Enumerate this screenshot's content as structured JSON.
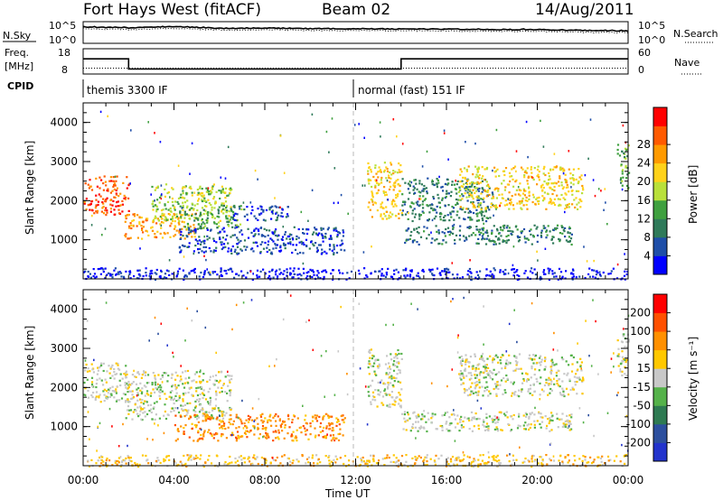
{
  "header": {
    "station": "Fort Hays West (fitACF)",
    "beam": "Beam 02",
    "date": "14/Aug/2011"
  },
  "panels": {
    "nsky_label": "N.Sky",
    "nsearch_label": "N.Search",
    "freq_label_line1": "Freq.",
    "freq_label_line2": "[MHz]",
    "nave_label": "Nave",
    "cpid_label": "CPID",
    "nsky_ticks": [
      "10^5",
      "10^0"
    ],
    "nsky_right_ticks": [
      "10^5",
      "10^0"
    ],
    "freq_ticks": [
      "18",
      "8"
    ],
    "nave_ticks": [
      "60",
      "0"
    ],
    "cpid_segments": [
      {
        "start_hour": 0,
        "end_hour": 12,
        "label": "themis 3300 IF"
      },
      {
        "start_hour": 12,
        "end_hour": 24,
        "label": "normal (fast) 151 IF"
      }
    ]
  },
  "colors": {
    "power": [
      "#0000ff",
      "#1e4ea8",
      "#2f7a5a",
      "#3fa03f",
      "#b9e03a",
      "#ffd21a",
      "#ff9a00",
      "#ff5a00",
      "#ff0000"
    ],
    "velocity": [
      "#2233cc",
      "#2c4f9e",
      "#2e7a52",
      "#55b24a",
      "#c8c8c8",
      "#ffc800",
      "#ff9000",
      "#ff5000",
      "#ff0000"
    ]
  },
  "chart_data": [
    {
      "type": "line",
      "name": "top-status",
      "x_hours": [
        0,
        2,
        4,
        6,
        8,
        10,
        12,
        14,
        16,
        18,
        20,
        22,
        24
      ],
      "nsky": [
        3.8,
        3.6,
        3.9,
        3.5,
        3.5,
        3.4,
        3.4,
        3.3,
        3.3,
        3.2,
        3.2,
        3.0,
        2.9
      ],
      "freq_mhz": [
        14,
        14,
        10,
        10,
        10,
        10,
        10,
        14,
        14,
        14,
        14,
        14,
        14
      ],
      "nave": [
        14,
        14,
        14,
        14,
        14,
        14,
        14,
        14,
        14,
        14,
        14,
        14,
        14
      ],
      "freq_steps": [
        {
          "start_hour": 0,
          "end_hour": 2,
          "value": 14
        },
        {
          "start_hour": 2,
          "end_hour": 14,
          "value": 10
        },
        {
          "start_hour": 14,
          "end_hour": 24,
          "value": 14
        }
      ]
    },
    {
      "type": "heatmap",
      "name": "power",
      "xlabel": "",
      "ylabel": "Slant Range [km]",
      "xlim": [
        0,
        24
      ],
      "ylim": [
        0,
        4500
      ],
      "yticks": [
        1000,
        2000,
        3000,
        4000
      ],
      "colorbar_label": "Power [dB]",
      "colorbar_ticks": [
        "4",
        "8",
        "12",
        "16",
        "20",
        "24",
        "28"
      ],
      "regions": [
        {
          "x0": 0.0,
          "x1": 2.0,
          "y0": 1650,
          "y1": 2650,
          "level": 7
        },
        {
          "x0": 1.8,
          "x1": 5.0,
          "y0": 1050,
          "y1": 1700,
          "level": 6
        },
        {
          "x0": 3.0,
          "x1": 6.5,
          "y0": 1500,
          "y1": 2450,
          "level": 4
        },
        {
          "x0": 4.2,
          "x1": 7.0,
          "y0": 1300,
          "y1": 1900,
          "level": 3
        },
        {
          "x0": 4.2,
          "x1": 11.5,
          "y0": 650,
          "y1": 1350,
          "level": 1
        },
        {
          "x0": 6.5,
          "x1": 9.0,
          "y0": 1500,
          "y1": 1900,
          "level": 1
        },
        {
          "x0": 12.5,
          "x1": 14.0,
          "y0": 1500,
          "y1": 3000,
          "level": 5
        },
        {
          "x0": 14.0,
          "x1": 18.0,
          "y0": 1500,
          "y1": 2600,
          "level": 2
        },
        {
          "x0": 14.0,
          "x1": 21.5,
          "y0": 900,
          "y1": 1400,
          "level": 2
        },
        {
          "x0": 16.5,
          "x1": 22.0,
          "y0": 1800,
          "y1": 2900,
          "level": 5
        },
        {
          "x0": 23.5,
          "x1": 24.0,
          "y0": 2300,
          "y1": 3500,
          "level": 3
        },
        {
          "x0": 0.0,
          "x1": 24.0,
          "y0": 0,
          "y1": 300,
          "level": 0
        }
      ]
    },
    {
      "type": "heatmap",
      "name": "velocity",
      "xlabel": "Time UT",
      "ylabel": "Slant Range [km]",
      "xlim": [
        0,
        24
      ],
      "ylim": [
        0,
        4500
      ],
      "yticks": [
        1000,
        2000,
        3000,
        4000
      ],
      "xticks": [
        "00:00",
        "04:00",
        "08:00",
        "12:00",
        "16:00",
        "20:00",
        "00:00"
      ],
      "xtick_hours": [
        0,
        4,
        8,
        12,
        16,
        20,
        24
      ],
      "colorbar_label": "Velocity [m s⁻¹]",
      "colorbar_ticks": [
        "200",
        "100",
        "50",
        "15",
        "-15",
        "-50",
        "-100",
        "-200"
      ],
      "regions": [
        {
          "x0": 0.0,
          "x1": 2.0,
          "y0": 1650,
          "y1": 2650,
          "level": 4
        },
        {
          "x0": 1.8,
          "x1": 6.5,
          "y0": 1200,
          "y1": 2450,
          "level": 4
        },
        {
          "x0": 4.0,
          "x1": 11.5,
          "y0": 650,
          "y1": 1350,
          "level": 6
        },
        {
          "x0": 12.5,
          "x1": 14.0,
          "y0": 1500,
          "y1": 3000,
          "level": 4
        },
        {
          "x0": 14.0,
          "x1": 21.5,
          "y0": 900,
          "y1": 1400,
          "level": 4
        },
        {
          "x0": 16.5,
          "x1": 22.0,
          "y0": 1800,
          "y1": 2900,
          "level": 4
        },
        {
          "x0": 23.5,
          "x1": 24.0,
          "y0": 2300,
          "y1": 3500,
          "level": 4
        },
        {
          "x0": 0.0,
          "x1": 24.0,
          "y0": 0,
          "y1": 300,
          "level": 5
        }
      ]
    }
  ]
}
